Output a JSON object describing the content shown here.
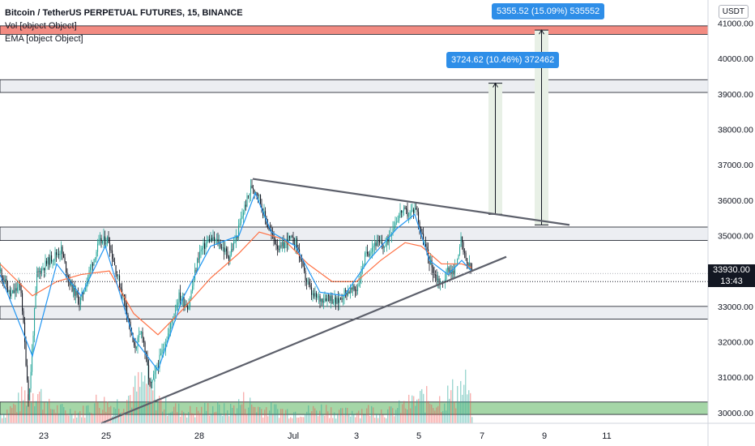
{
  "header": {
    "symbol_line": "Bitcoin / TetherUS PERPETUAL FUTURES, 15, BINANCE",
    "vol_line": "Vol [object Object]",
    "ema_line": "EMA  [object Object]"
  },
  "price_axis": {
    "currency_button": "USDT",
    "current_price": "33930.00",
    "countdown": "13:43",
    "ticks": [
      "41000.00",
      "40000.00",
      "39000.00",
      "38000.00",
      "37000.00",
      "36000.00",
      "35000.00",
      "34000.00",
      "33000.00",
      "32000.00",
      "31000.00",
      "30000.00"
    ]
  },
  "callouts": {
    "target1": "3724.62 (10.46%) 372462",
    "target2": "5355.52 (15.09%) 535552"
  },
  "colors": {
    "up": "#26a69a",
    "down": "#131722",
    "ema_fast": "#2196f3",
    "ema_slow": "#ff7043",
    "trendline": "#5d606b",
    "zone_fill": "#eceef2",
    "red_zone": "#f28b82",
    "green_zone": "#a5d6a7",
    "callout": "#2e8ee8",
    "measure_fill": "#e8f0e6"
  },
  "chart_data": {
    "type": "candlestick",
    "title": "Bitcoin / TetherUS PERPETUAL FUTURES, 15, BINANCE",
    "y_range": [
      29700,
      41650
    ],
    "x_labels": [
      "23",
      "25",
      "28",
      "Jul",
      "3",
      "5",
      "7",
      "9",
      "11"
    ],
    "price_path": [
      [
        0,
        34000
      ],
      [
        12,
        33300
      ],
      [
        25,
        33600
      ],
      [
        35,
        30300
      ],
      [
        45,
        33900
      ],
      [
        60,
        34300
      ],
      [
        75,
        34600
      ],
      [
        85,
        33700
      ],
      [
        98,
        33100
      ],
      [
        110,
        34000
      ],
      [
        122,
        34800
      ],
      [
        133,
        34900
      ],
      [
        145,
        33800
      ],
      [
        155,
        33000
      ],
      [
        165,
        31800
      ],
      [
        175,
        32300
      ],
      [
        185,
        30700
      ],
      [
        195,
        31400
      ],
      [
        208,
        32300
      ],
      [
        220,
        33300
      ],
      [
        232,
        33000
      ],
      [
        245,
        34500
      ],
      [
        258,
        34900
      ],
      [
        270,
        34800
      ],
      [
        282,
        34400
      ],
      [
        292,
        35000
      ],
      [
        300,
        35700
      ],
      [
        310,
        36400
      ],
      [
        318,
        36200
      ],
      [
        325,
        35600
      ],
      [
        335,
        35000
      ],
      [
        345,
        34600
      ],
      [
        355,
        34900
      ],
      [
        365,
        34800
      ],
      [
        375,
        33900
      ],
      [
        385,
        33300
      ],
      [
        395,
        33200
      ],
      [
        405,
        33300
      ],
      [
        415,
        33100
      ],
      [
        425,
        33400
      ],
      [
        440,
        33500
      ],
      [
        450,
        34400
      ],
      [
        462,
        34800
      ],
      [
        475,
        34700
      ],
      [
        485,
        35300
      ],
      [
        495,
        35700
      ],
      [
        505,
        35600
      ],
      [
        513,
        35800
      ],
      [
        520,
        35000
      ],
      [
        528,
        34400
      ],
      [
        536,
        33900
      ],
      [
        545,
        33600
      ],
      [
        553,
        34100
      ],
      [
        560,
        33900
      ],
      [
        568,
        34900
      ],
      [
        574,
        34300
      ],
      [
        582,
        34000
      ]
    ],
    "ema_fast": [
      [
        0,
        33900
      ],
      [
        40,
        31600
      ],
      [
        70,
        34200
      ],
      [
        100,
        33300
      ],
      [
        130,
        34700
      ],
      [
        165,
        32100
      ],
      [
        195,
        31200
      ],
      [
        225,
        33200
      ],
      [
        260,
        34700
      ],
      [
        295,
        35000
      ],
      [
        315,
        36200
      ],
      [
        335,
        35100
      ],
      [
        365,
        34700
      ],
      [
        395,
        33400
      ],
      [
        425,
        33300
      ],
      [
        455,
        34300
      ],
      [
        490,
        35200
      ],
      [
        512,
        35600
      ],
      [
        530,
        34300
      ],
      [
        553,
        33900
      ],
      [
        570,
        34300
      ],
      [
        582,
        34000
      ]
    ],
    "ema_slow": [
      [
        0,
        34200
      ],
      [
        40,
        33300
      ],
      [
        70,
        33700
      ],
      [
        100,
        33900
      ],
      [
        135,
        34000
      ],
      [
        165,
        32800
      ],
      [
        195,
        32200
      ],
      [
        225,
        32900
      ],
      [
        260,
        33800
      ],
      [
        295,
        34500
      ],
      [
        320,
        35100
      ],
      [
        350,
        34900
      ],
      [
        380,
        34200
      ],
      [
        410,
        33700
      ],
      [
        440,
        33700
      ],
      [
        470,
        34300
      ],
      [
        500,
        34800
      ],
      [
        520,
        34700
      ],
      [
        545,
        34200
      ],
      [
        570,
        34200
      ],
      [
        582,
        34100
      ]
    ],
    "volume_profile": [
      [
        0,
        14
      ],
      [
        20,
        30
      ],
      [
        40,
        60
      ],
      [
        60,
        26
      ],
      [
        80,
        20
      ],
      [
        100,
        18
      ],
      [
        120,
        35
      ],
      [
        140,
        28
      ],
      [
        160,
        45
      ],
      [
        180,
        70
      ],
      [
        200,
        30
      ],
      [
        220,
        22
      ],
      [
        240,
        18
      ],
      [
        260,
        26
      ],
      [
        280,
        20
      ],
      [
        300,
        35
      ],
      [
        320,
        24
      ],
      [
        340,
        22
      ],
      [
        360,
        18
      ],
      [
        380,
        20
      ],
      [
        400,
        24
      ],
      [
        420,
        16
      ],
      [
        440,
        20
      ],
      [
        460,
        22
      ],
      [
        480,
        18
      ],
      [
        500,
        28
      ],
      [
        520,
        40
      ],
      [
        540,
        35
      ],
      [
        560,
        50
      ],
      [
        575,
        60
      ],
      [
        582,
        20
      ]
    ],
    "horizontal_zones": [
      {
        "kind": "resistance_red",
        "from": 40680,
        "to": 40920
      },
      {
        "kind": "gray",
        "from": 39040,
        "to": 39400
      },
      {
        "kind": "gray",
        "from": 34860,
        "to": 35240
      },
      {
        "kind": "gray",
        "from": 32640,
        "to": 33000
      },
      {
        "kind": "support_green",
        "from": 29950,
        "to": 30300
      }
    ],
    "trendlines": [
      {
        "name": "descending",
        "from": [
          312,
          36600
        ],
        "to": [
          703,
          35300
        ]
      },
      {
        "name": "ascending",
        "from": [
          125,
          29700
        ],
        "to": [
          625,
          34400
        ]
      }
    ],
    "current_price_line": 33930,
    "last_price_line": 33700,
    "measurements": [
      {
        "x_from": 603,
        "x_to": 620,
        "y_from": 35600,
        "y_to": 39300
      },
      {
        "x_from": 660,
        "x_to": 677,
        "y_from": 35300,
        "y_to": 40800
      }
    ]
  }
}
